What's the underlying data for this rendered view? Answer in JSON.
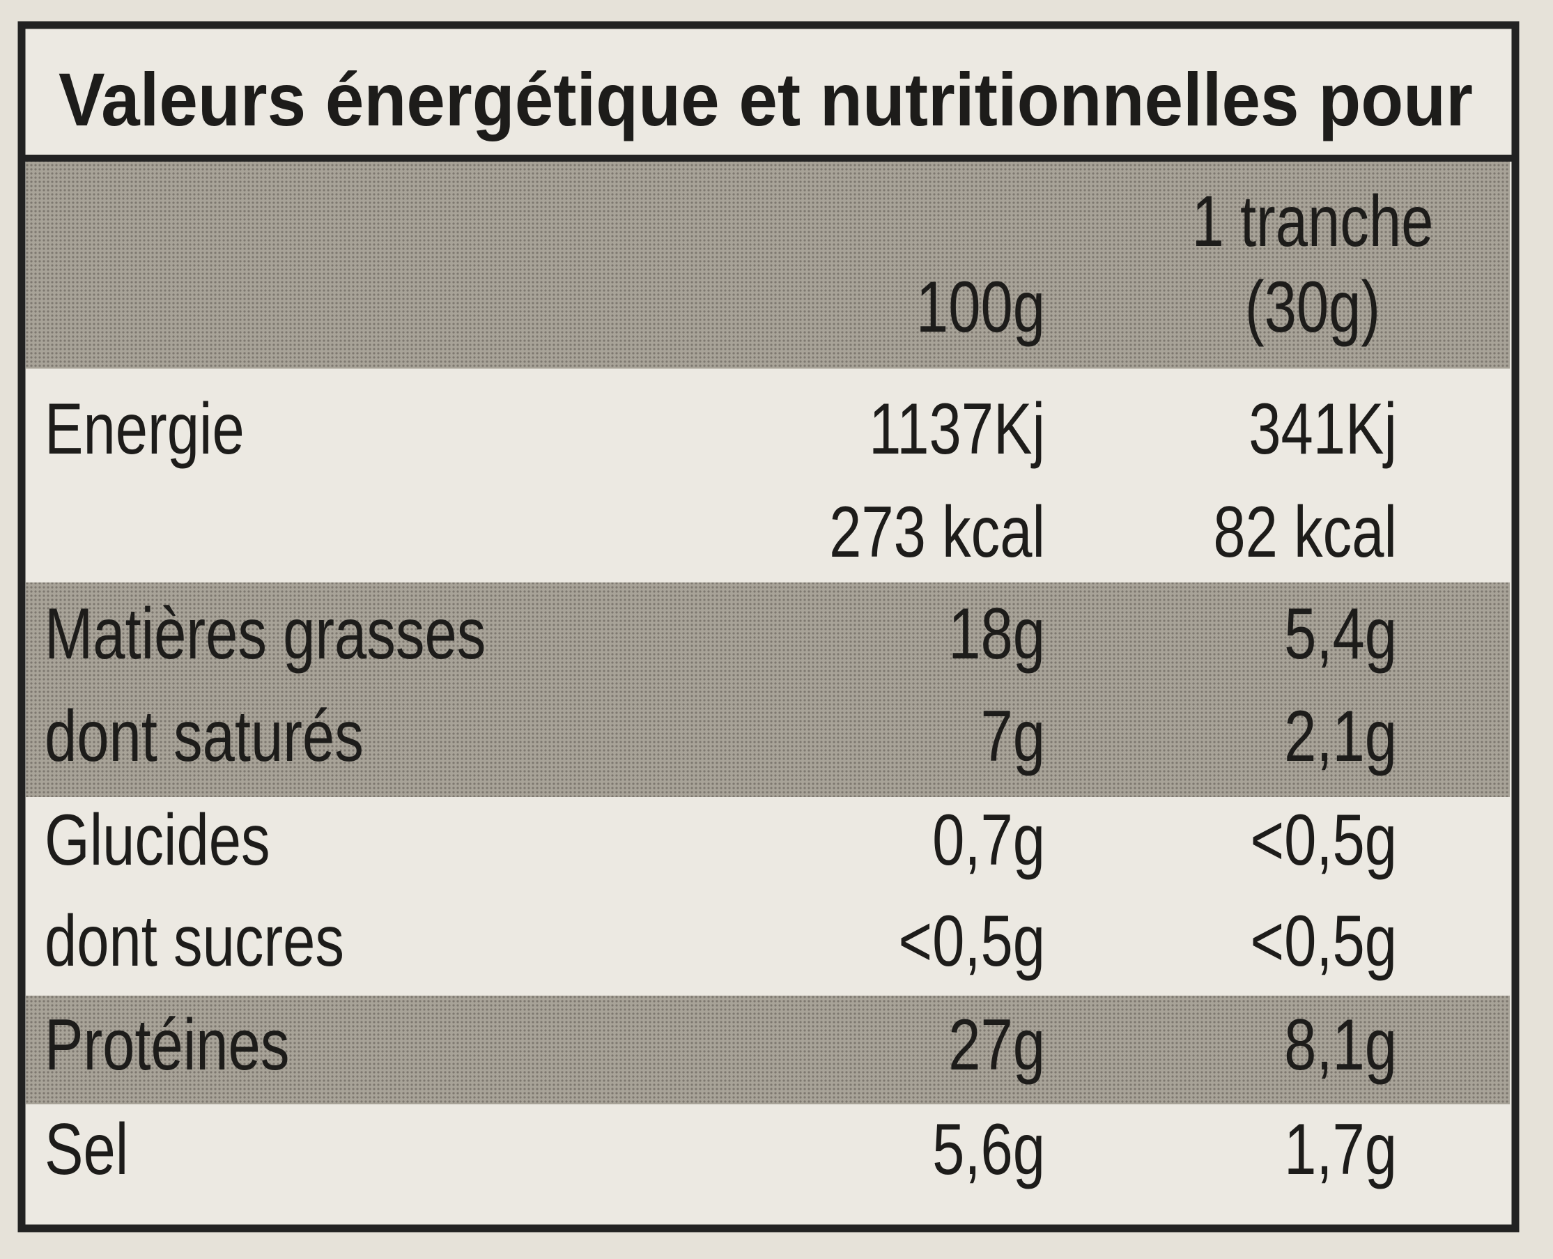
{
  "title": "Valeurs énergétique et nutritionnelles pour",
  "table": {
    "columns": [
      {
        "lines": [
          "100g"
        ]
      },
      {
        "lines": [
          "1 tranche",
          "(30g)"
        ]
      }
    ],
    "rows": [
      {
        "label": "Energie",
        "values": [
          "1137Kj",
          "341Kj"
        ]
      },
      {
        "values": [
          "273 kcal",
          "82 kcal"
        ]
      },
      {
        "label": "Matières grasses",
        "values": [
          "18g",
          "5,4g"
        ]
      },
      {
        "label": "dont saturés",
        "values": [
          "7g",
          "2,1g"
        ]
      },
      {
        "label": "Glucides",
        "values": [
          "0,7g",
          "<0,5g"
        ]
      },
      {
        "label": "dont sucres",
        "values": [
          "<0,5g",
          "<0,5g"
        ]
      },
      {
        "label": "Protéines",
        "values": [
          "27g",
          "8,1g"
        ]
      },
      {
        "label": "Sel",
        "values": [
          "5,6g",
          "1,7g"
        ]
      }
    ]
  }
}
